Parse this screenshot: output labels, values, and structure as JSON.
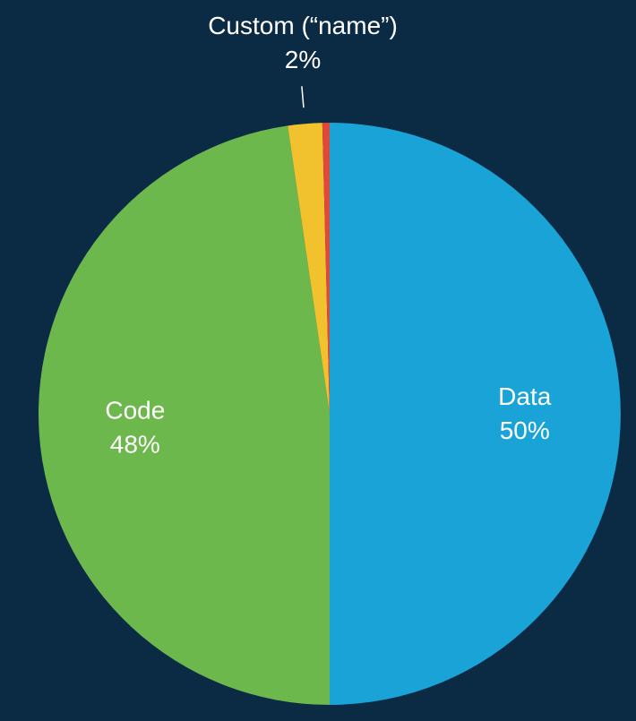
{
  "chart_data": {
    "type": "pie",
    "title": "",
    "background_color": "#0b2b45",
    "label_color": "#ffffff",
    "start_angle_deg": 0,
    "direction": "clockwise",
    "slices": [
      {
        "label": "Data",
        "value": 50.0,
        "value_label": "50%",
        "color": "#1aa3d6",
        "show_label": true,
        "label_outside": false
      },
      {
        "label": "Code",
        "value": 47.7,
        "value_label": "48%",
        "color": "#6db84c",
        "show_label": true,
        "label_outside": false
      },
      {
        "label": "Custom (“name”)",
        "value": 1.9,
        "value_label": "2%",
        "color": "#f2c12e",
        "show_label": true,
        "label_outside": true
      },
      {
        "label": "",
        "value": 0.4,
        "value_label": "",
        "color": "#e0483a",
        "show_label": false,
        "label_outside": false
      }
    ]
  }
}
